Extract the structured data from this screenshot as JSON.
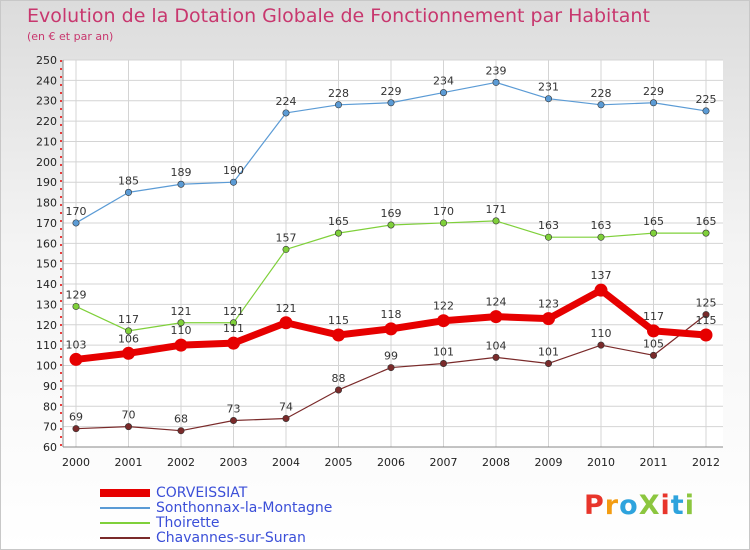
{
  "title": "Evolution de la Dotation Globale de Fonctionnement par Habitant",
  "subtitle": "(en € et par an)",
  "logo": {
    "text": "ProXiti",
    "colors": [
      "#e8352b",
      "#f39c12",
      "#2ea3dd",
      "#8cc63f",
      "#e8352b",
      "#2ea3dd",
      "#8cc63f"
    ]
  },
  "colors": {
    "title": "#c8376e",
    "legend_text": "#3b4fd8",
    "axis_text": "#222222",
    "grid": "#d4d4d4"
  },
  "chart_data": {
    "type": "line",
    "x": [
      "2000",
      "2001",
      "2002",
      "2003",
      "2004",
      "2005",
      "2006",
      "2007",
      "2008",
      "2009",
      "2010",
      "2011",
      "2012"
    ],
    "ylim": [
      60,
      250
    ],
    "ytick_step": 10,
    "grid": true,
    "legend_position": "bottom-left",
    "series": [
      {
        "name": "CORVEISSIAT",
        "color": "#e60000",
        "emphasis": true,
        "values": [
          103,
          106,
          110,
          111,
          121,
          115,
          118,
          122,
          124,
          123,
          137,
          117,
          115
        ]
      },
      {
        "name": "Sonthonnax-la-Montagne",
        "color": "#5b9bd5",
        "emphasis": false,
        "values": [
          170,
          185,
          189,
          190,
          224,
          228,
          229,
          234,
          239,
          231,
          228,
          229,
          225
        ]
      },
      {
        "name": "Thoirette",
        "color": "#7fd03a",
        "emphasis": false,
        "values": [
          129,
          117,
          121,
          121,
          157,
          165,
          169,
          170,
          171,
          163,
          163,
          165,
          165
        ]
      },
      {
        "name": "Chavannes-sur-Suran",
        "color": "#7a2a2a",
        "emphasis": false,
        "values": [
          69,
          70,
          68,
          73,
          74,
          88,
          99,
          101,
          104,
          101,
          110,
          105,
          125
        ]
      }
    ]
  }
}
